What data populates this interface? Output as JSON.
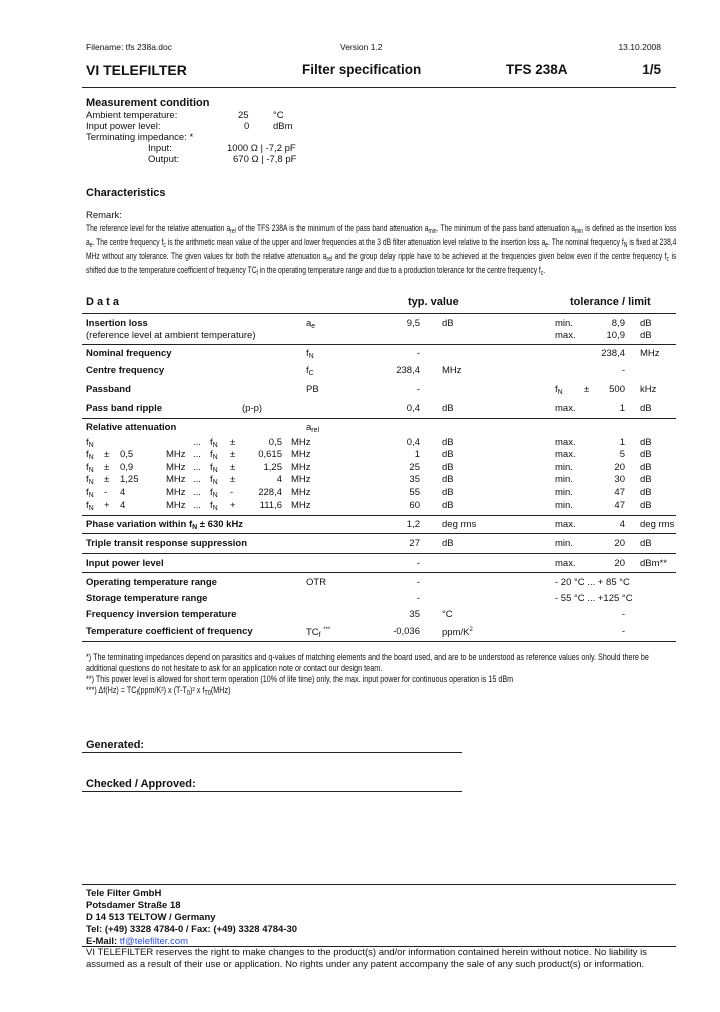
{
  "header": {
    "filename": "Filename: tfs 238a.doc",
    "version": "Version 1.2",
    "date": "13.10.2008",
    "logo": "VI TELEFILTER",
    "doc_title": "Filter specification",
    "part": "TFS 238A",
    "page": "1/5"
  },
  "measurement": {
    "title": "Measurement condition",
    "rows": [
      {
        "label": "Ambient temperature:",
        "value": "25",
        "unit": "°C"
      },
      {
        "label": "Input power level:",
        "value": "0",
        "unit": "dBm"
      }
    ],
    "impedance_label": "Terminating impedance: *",
    "input": {
      "label": "Input:",
      "value": "1000 Ω | -7,2 pF"
    },
    "output": {
      "label": "Output:",
      "value": "670 Ω | -7,8 pF"
    }
  },
  "characteristics": {
    "title": "Characteristics",
    "remark_label": "Remark:",
    "remark": [
      "The reference level for the relative attenuation a",
      "rel",
      " of the TFS 238A is the minimum of the pass band attenuation a",
      "min",
      ". The minimum of the pass band attenuation a",
      "min",
      " is defined as the insertion loss a",
      "e",
      ". The centre frequency f",
      "c",
      " is the arithmetic mean value of the upper and lower frequencies at the 3 dB filter attenuation level relative to the insertion loss a",
      "e",
      ". The nominal frequency f",
      "N",
      " is fixed at 238,4 MHz without any tolerance. The given values for both the relative attenuation a",
      "rel",
      " and the group delay ripple have to be achieved at the frequencies given below even if the centre frequency f",
      "c",
      " is shifted due to the temperature coefficient of frequency TC",
      "f",
      " in the operating temperature range and due to a production tolerance for the centre frequency f",
      "c",
      "."
    ]
  },
  "data": {
    "title": "D a t a",
    "typ_header": "typ. value",
    "tol_header": "tolerance / limit",
    "insertion": {
      "label": "Insertion loss",
      "sub_label": "(reference level at ambient temperature)",
      "sym": "a",
      "sym_sub": "e",
      "typ": "9,5",
      "unit": "dB",
      "min_label": "min.",
      "min": "8,9",
      "min_unit": "dB",
      "max_label": "max.",
      "max": "10,9",
      "max_unit": "dB"
    },
    "nominal": {
      "label": "Nominal frequency",
      "sym": "f",
      "sym_sub": "N",
      "typ": "-",
      "lim": "238,4",
      "lim_unit": "MHz"
    },
    "centre": {
      "label": "Centre frequency",
      "sym": "f",
      "sym_sub": "C",
      "typ": "238,4",
      "unit": "MHz",
      "lim": "-"
    },
    "passband": {
      "label": "Passband",
      "sym": "PB",
      "typ": "-",
      "lim_sym": "f",
      "lim_sub": "N",
      "lim_sign": "±",
      "lim": "500",
      "lim_unit": "kHz"
    },
    "ripple": {
      "label": "Pass band ripple",
      "note": "(p-p)",
      "typ": "0,4",
      "unit": "dB",
      "mm": "max.",
      "lim": "1",
      "lim_unit": "dB"
    },
    "relative": {
      "label": "Relative attenuation",
      "sym": "a",
      "sym_sub": "rel",
      "rows": [
        {
          "s1": "",
          "v1": "",
          "u1": "",
          "s2": "±",
          "v2": "0,5",
          "typ": "0,4",
          "mm": "max.",
          "lim": "1"
        },
        {
          "s1": "±",
          "v1": "0,5",
          "u1": "MHz",
          "s2": "±",
          "v2": "0,615",
          "typ": "1",
          "mm": "max.",
          "lim": "5"
        },
        {
          "s1": "±",
          "v1": "0,9",
          "u1": "MHz",
          "s2": "±",
          "v2": "1,25",
          "typ": "25",
          "mm": "min.",
          "lim": "20"
        },
        {
          "s1": "±",
          "v1": "1,25",
          "u1": "MHz",
          "s2": "±",
          "v2": "4",
          "typ": "35",
          "mm": "min.",
          "lim": "30"
        },
        {
          "s1": "-",
          "v1": "4",
          "u1": "MHz",
          "s2": "-",
          "v2": "228,4",
          "typ": "55",
          "mm": "min.",
          "lim": "47"
        },
        {
          "s1": "+",
          "v1": "4",
          "u1": "MHz",
          "s2": "+",
          "v2": "111,6",
          "typ": "60",
          "mm": "min.",
          "lim": "47"
        }
      ],
      "f": "f",
      "n": "N",
      "dots": "...",
      "mhz": "MHz",
      "db": "dB"
    },
    "phase": {
      "label_pre": "Phase variation within f",
      "label_sub": "N",
      "label_post": " ± 630 kHz",
      "typ": "1,2",
      "unit": "deg rms",
      "mm": "max.",
      "lim": "4",
      "lim_unit": "deg rms"
    },
    "triple": {
      "label": "Triple transit response suppression",
      "typ": "27",
      "unit": "dB",
      "mm": "min.",
      "lim": "20",
      "lim_unit": "dB"
    },
    "power": {
      "label": "Input power level",
      "typ": "-",
      "mm": "max.",
      "lim": "20",
      "lim_unit": "dBm**"
    },
    "otr": {
      "label": "Operating temperature range",
      "sym": "OTR",
      "typ": "-",
      "lim": "- 20 °C ... + 85 °C"
    },
    "storage": {
      "label": "Storage temperature range",
      "typ": "-",
      "lim": "- 55 °C ... +125 °C"
    },
    "inversion": {
      "label": "Frequency inversion temperature",
      "typ": "35",
      "unit": "°C",
      "lim": "-"
    },
    "tcf": {
      "label": "Temperature coefficient of frequency",
      "sym": "TC",
      "sym_sub": "f",
      "sym_note": "***",
      "typ": "-0,036",
      "unit": "ppm/K",
      "unit_sup": "2",
      "lim": "-"
    }
  },
  "footnotes": [
    "*) The terminating impedances depend on parasitics and q-values of matching elements and the board used, and are to be understood as reference values only. Should there be additional questions do not hesitate to ask for an application note or contact our design team.",
    "**) This power level is allowed for short term operation (10% of life time) only, the max. input power for continuous operation is 15 dBm",
    "***) Δf(Hz) = TC",
    "f",
    "(ppm/K²) x (T-T",
    "0",
    ")² x f",
    "T0",
    "(MHz)"
  ],
  "signoff": {
    "generated": "Generated:",
    "checked": "Checked / Approved:"
  },
  "footer": {
    "company": "Tele Filter GmbH",
    "street": "Potsdamer Straße 18",
    "city": "D 14 513 TELTOW / Germany",
    "phone": "Tel: (+49) 3328 4784-0 / Fax: (+49) 3328 4784-30",
    "email_label": "E-Mail: ",
    "email": "tf@telefilter.com",
    "disclaimer": "VI TELEFILTER reserves the right to make changes to the product(s) and/or information contained herein without notice.  No liability is assumed as a result of their use or application.  No rights under any patent accompany the sale of any such product(s) or information."
  },
  "colors": {
    "link": "#3050c8",
    "text": "#111111"
  }
}
